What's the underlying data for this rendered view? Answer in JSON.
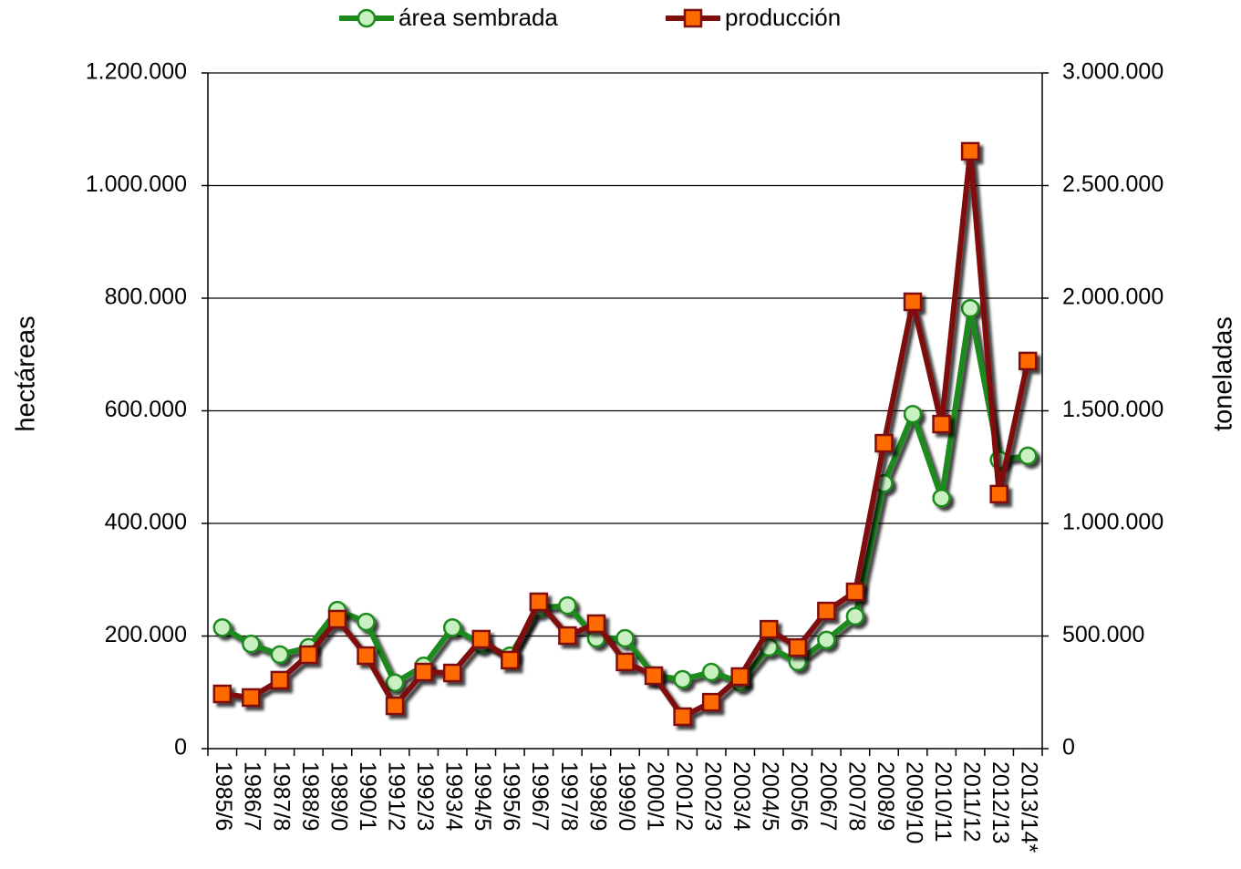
{
  "chart_data": {
    "type": "line",
    "y_label": "hectáreas",
    "y2_label": "toneladas",
    "categories": [
      "1985/6",
      "1986/7",
      "1987/8",
      "1988/9",
      "1989/0",
      "1990/1",
      "1991/2",
      "1992/3",
      "1993/4",
      "1994/5",
      "1995/6",
      "1996/7",
      "1997/8",
      "1998/9",
      "1999/0",
      "2000/1",
      "2001/2",
      "2002/3",
      "2003/4",
      "2004/5",
      "2005/6",
      "2006/7",
      "2007/8",
      "2008/9",
      "2009/10",
      "2010/11",
      "2011/12",
      "2012/13",
      "2013/14*"
    ],
    "series": [
      {
        "name": "área sembrada",
        "color": "#1a8a1a",
        "marker_fill": "#c8f0c0",
        "marker": "circle",
        "axis": "y",
        "values": [
          215000,
          186000,
          167000,
          180000,
          246000,
          225000,
          117000,
          147000,
          215000,
          186000,
          165000,
          250000,
          254000,
          196000,
          196000,
          130000,
          123000,
          136000,
          118000,
          180000,
          154000,
          193000,
          235000,
          471000,
          594000,
          445000,
          782000,
          513000,
          520000
        ]
      },
      {
        "name": "producción",
        "color": "#7f1010",
        "marker_fill": "#ff6a00",
        "marker": "square",
        "axis": "y2",
        "values": [
          243000,
          227000,
          304000,
          417000,
          575000,
          413000,
          190000,
          340000,
          336000,
          486000,
          393000,
          652000,
          502000,
          555000,
          385000,
          324000,
          142000,
          206000,
          320000,
          530000,
          449000,
          611000,
          696000,
          1356000,
          1984000,
          1441000,
          2652000,
          1130000,
          1721000
        ]
      }
    ],
    "ylim": [
      0,
      1200000
    ],
    "yticks": [
      0,
      {
        "value": 200000,
        "label": "200.000"
      },
      {
        "value": 400000,
        "label": "400.000"
      },
      {
        "value": 600000,
        "label": "600.000"
      },
      {
        "value": 800000,
        "label": "800.000"
      },
      {
        "value": 1000000,
        "label": "1.000.000"
      },
      {
        "value": 1200000,
        "label": "1.200.000"
      }
    ],
    "y2lim": [
      0,
      3000000
    ],
    "y2ticks": [
      0,
      {
        "value": 500000,
        "label": "500.000"
      },
      {
        "value": 1000000,
        "label": "1.000.000"
      },
      {
        "value": 1500000,
        "label": "1.500.000"
      },
      {
        "value": 2000000,
        "label": "2.000.000"
      },
      {
        "value": 2500000,
        "label": "2.500.000"
      },
      {
        "value": 3000000,
        "label": "3.000.000"
      }
    ],
    "grid": true,
    "legend": "top"
  }
}
